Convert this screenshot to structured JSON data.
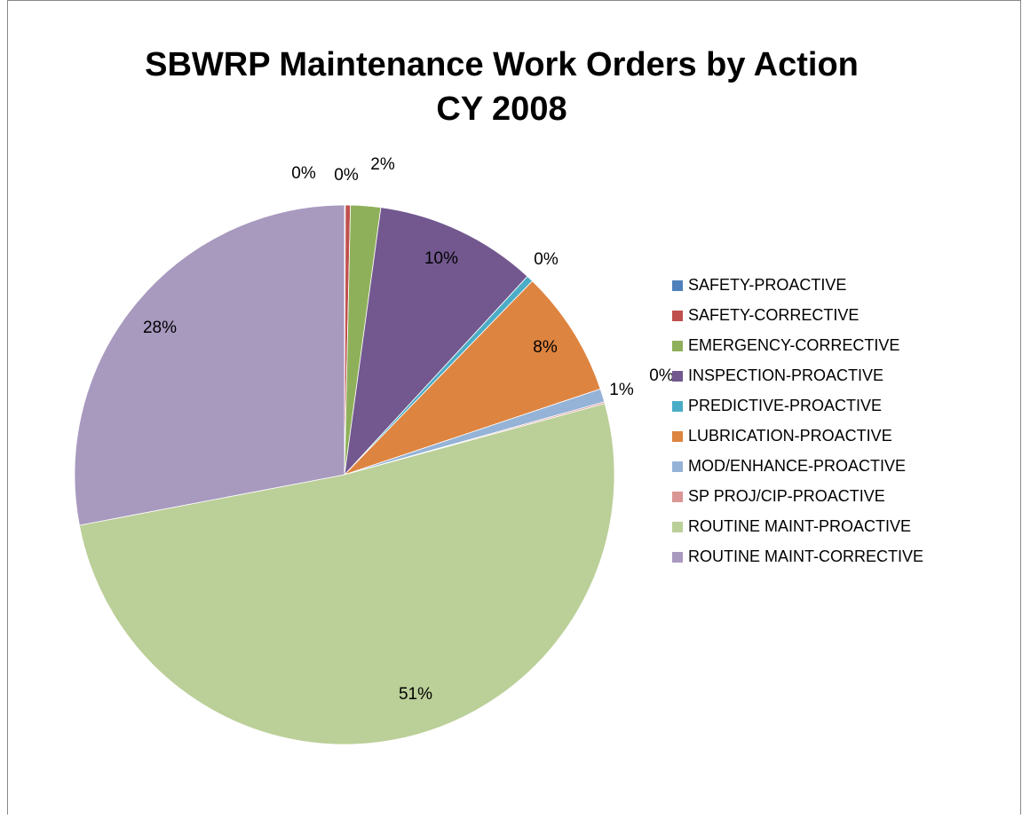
{
  "chart_data": {
    "type": "pie",
    "title": "SBWRP Maintenance Work Orders by Action",
    "subtitle": "CY 2008",
    "categories": [
      "SAFETY-PROACTIVE",
      "SAFETY-CORRECTIVE",
      "EMERGENCY-CORRECTIVE",
      "INSPECTION-PROACTIVE",
      "PREDICTIVE-PROACTIVE",
      "LUBRICATION-PROACTIVE",
      "MOD/ENHANCE-PROACTIVE",
      "SP PROJ/CIP-PROACTIVE",
      "ROUTINE MAINT-PROACTIVE",
      "ROUTINE MAINT-CORRECTIVE"
    ],
    "values": [
      0.05,
      0.3,
      1.8,
      9.7,
      0.4,
      7.6,
      0.8,
      0.1,
      51.25,
      28.0
    ],
    "value_labels": [
      "0%",
      "0%",
      "2%",
      "10%",
      "0%",
      "8%",
      "1%",
      "0%",
      "51%",
      "28%"
    ],
    "colors": [
      "#4f81bd",
      "#c0504d",
      "#8fb05a",
      "#72588f",
      "#4bacc6",
      "#dd8440",
      "#95b3d7",
      "#d99694",
      "#bbcf98",
      "#a899bf"
    ],
    "legend": "right"
  }
}
